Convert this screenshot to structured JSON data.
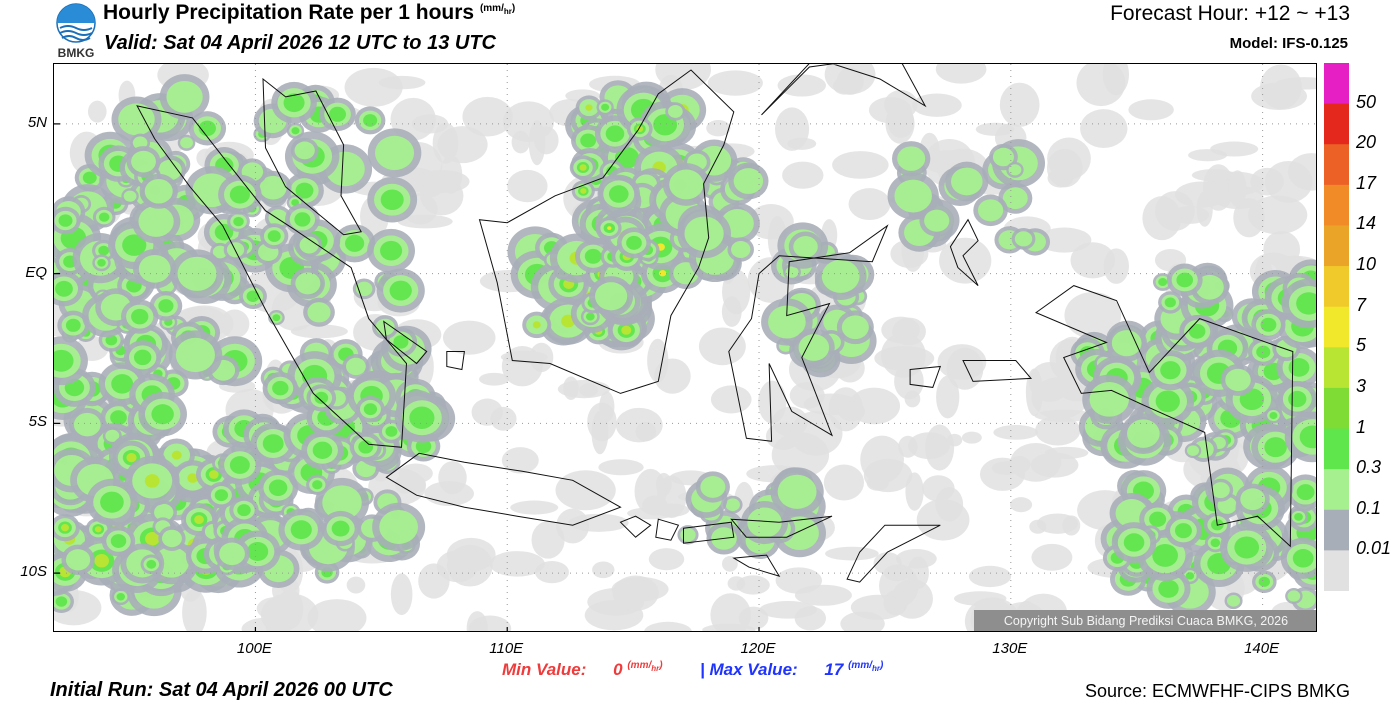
{
  "header": {
    "title": "Hourly Precipitation Rate per 1 hours",
    "title_unit_num": "mm",
    "title_unit_den": "hr",
    "valid": "Valid: Sat 04 April 2026 12 UTC to 13 UTC",
    "forecast_hour": "Forecast Hour: +12 ~ +13",
    "model": "Model: IFS-0.125"
  },
  "logo": {
    "text": "BMKG",
    "icon": "bmkg-logo-icon"
  },
  "map": {
    "lat_labels": [
      "5N",
      "EQ",
      "5S",
      "10S"
    ],
    "lon_labels": [
      "100E",
      "110E",
      "120E",
      "130E",
      "140E"
    ],
    "lat_values": [
      5,
      0,
      -5,
      -10
    ],
    "lon_values": [
      100,
      110,
      120,
      130,
      140
    ],
    "lat_range": [
      -12,
      7
    ],
    "lon_range": [
      92,
      142.2
    ],
    "copyright": "Copyright Sub Bidang Prediksi Cuaca BMKG, 2026"
  },
  "colorbar": {
    "labels": [
      "50",
      "20",
      "17",
      "14",
      "10",
      "7",
      "5",
      "3",
      "1",
      "0.3",
      "0.1",
      "0.01"
    ],
    "colors": [
      "#e51fc4",
      "#e4281e",
      "#ec6226",
      "#f08b28",
      "#eaa428",
      "#f0c92a",
      "#f1e82c",
      "#b8e533",
      "#7fdc34",
      "#5fe64d",
      "#a6f08f",
      "#a8aeb8",
      "#e1e1e1"
    ]
  },
  "minmax": {
    "min_label": "Min Value:",
    "min_value": "0",
    "max_label": "Max Value:",
    "max_value": "17",
    "unit_num": "mm",
    "unit_den": "hr",
    "separator": "|"
  },
  "footer": {
    "initial_run": "Initial Run: Sat 04 April 2026 00 UTC",
    "source": "Source: ECMWFHF-CIPS BMKG"
  },
  "precip_colors": {
    "light_gray": "#e1e1e1",
    "gray": "#a8aeb8",
    "light_green": "#a6f08f",
    "green": "#5fe64d",
    "yellow_green": "#b8e533",
    "yellow": "#f1e82c",
    "orange": "#f08b28"
  }
}
